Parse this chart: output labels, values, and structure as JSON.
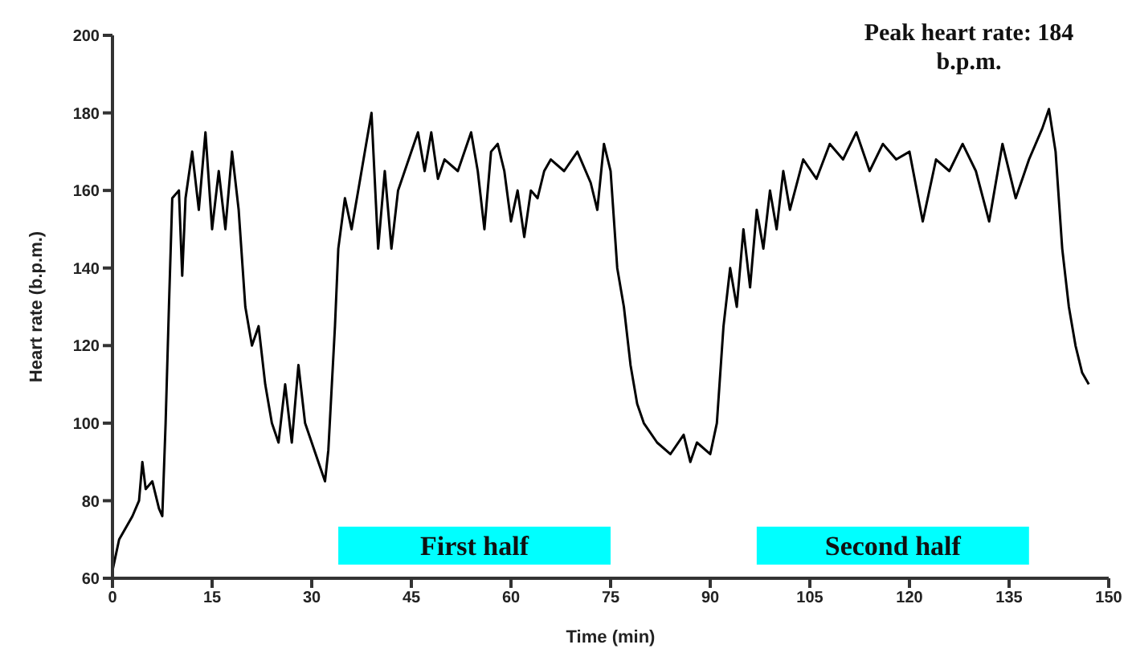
{
  "chart_data": {
    "type": "line",
    "xlabel": "Time (min)",
    "ylabel": "Heart rate (b.p.m.)",
    "annotations": [
      "Peak heart rate: 184 b.p.m."
    ],
    "x": [
      0,
      1,
      2,
      3,
      4,
      4.5,
      5,
      6,
      7,
      7.5,
      8,
      8.5,
      9,
      10,
      10.5,
      11,
      12,
      13,
      14,
      15,
      16,
      17,
      18,
      19,
      20,
      21,
      22,
      23,
      24,
      25,
      26,
      27,
      28,
      29,
      30,
      31,
      32,
      32.5,
      33.5,
      34,
      35,
      36,
      37,
      38,
      39,
      40,
      41,
      42,
      43,
      44,
      45,
      46,
      47,
      48,
      49,
      50,
      52,
      54,
      55,
      56,
      57,
      58,
      59,
      60,
      61,
      62,
      63,
      64,
      65,
      66,
      68,
      70,
      72,
      73,
      74,
      75,
      76,
      77,
      78,
      79,
      80,
      82,
      84,
      86,
      87,
      88,
      90,
      91,
      92,
      93,
      94,
      95,
      96,
      97,
      98,
      99,
      100,
      101,
      102,
      104,
      106,
      108,
      110,
      112,
      114,
      116,
      118,
      120,
      122,
      124,
      126,
      128,
      130,
      132,
      134,
      136,
      138,
      140,
      141,
      142,
      143,
      144,
      145,
      146,
      147
    ],
    "series": [
      {
        "color": "#000000",
        "values": [
          62,
          70,
          73,
          76,
          80,
          90,
          83,
          85,
          78,
          76,
          100,
          130,
          158,
          160,
          138,
          158,
          170,
          155,
          175,
          150,
          165,
          150,
          170,
          155,
          130,
          120,
          125,
          110,
          100,
          95,
          110,
          95,
          115,
          100,
          95,
          90,
          85,
          93,
          125,
          145,
          158,
          150,
          160,
          170,
          180,
          145,
          165,
          145,
          160,
          165,
          170,
          175,
          165,
          175,
          163,
          168,
          165,
          175,
          165,
          150,
          170,
          172,
          165,
          152,
          160,
          148,
          160,
          158,
          165,
          168,
          165,
          170,
          162,
          155,
          172,
          165,
          140,
          130,
          115,
          105,
          100,
          95,
          92,
          97,
          90,
          95,
          92,
          100,
          125,
          140,
          130,
          150,
          135,
          155,
          145,
          160,
          150,
          165,
          155,
          168,
          163,
          172,
          168,
          175,
          165,
          172,
          168,
          170,
          152,
          168,
          165,
          172,
          165,
          152,
          172,
          158,
          168,
          176,
          181,
          170,
          145,
          130,
          120,
          113,
          110
        ]
      }
    ],
    "xlim": [
      0,
      150
    ],
    "xticks": [
      0,
      15,
      30,
      45,
      60,
      75,
      90,
      105,
      120,
      135,
      150
    ],
    "ylim": [
      60,
      200
    ],
    "yticks": [
      60,
      80,
      100,
      120,
      140,
      160,
      180,
      200
    ],
    "bands": [
      {
        "axis": "x",
        "from": 34,
        "to": 75,
        "label": "First half",
        "color": "#00ffff"
      },
      {
        "axis": "x",
        "from": 97,
        "to": 138,
        "label": "Second half",
        "color": "#00ffff"
      }
    ],
    "grid": false,
    "legend": false,
    "marker": "none",
    "line_style": "solid"
  }
}
